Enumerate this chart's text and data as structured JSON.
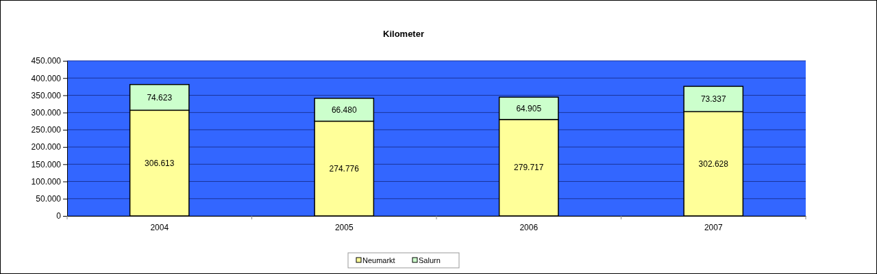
{
  "chart_data": {
    "type": "bar",
    "title": "Kilometer",
    "categories": [
      "2004",
      "2005",
      "2006",
      "2007"
    ],
    "stacked": true,
    "series": [
      {
        "name": "Neumarkt",
        "color": "#ffff99",
        "values": [
          306613,
          274776,
          279717,
          302628
        ],
        "value_labels": [
          "306.613",
          "274.776",
          "279.717",
          "302.628"
        ]
      },
      {
        "name": "Salurn",
        "color": "#ccffcc",
        "values": [
          74623,
          66480,
          64905,
          73337
        ],
        "value_labels": [
          "74.623",
          "66.480",
          "64.905",
          "73.337"
        ]
      }
    ],
    "ylim": [
      0,
      450000
    ],
    "yticks": [
      {
        "value": 0,
        "label": "0"
      },
      {
        "value": 50000,
        "label": "50.000"
      },
      {
        "value": 100000,
        "label": "100.000"
      },
      {
        "value": 150000,
        "label": "150.000"
      },
      {
        "value": 200000,
        "label": "200.000"
      },
      {
        "value": 250000,
        "label": "250.000"
      },
      {
        "value": 300000,
        "label": "300.000"
      },
      {
        "value": 350000,
        "label": "350.000"
      },
      {
        "value": 400000,
        "label": "400.000"
      },
      {
        "value": 450000,
        "label": "450.000"
      }
    ],
    "grid": "y",
    "legend": "bottom"
  }
}
